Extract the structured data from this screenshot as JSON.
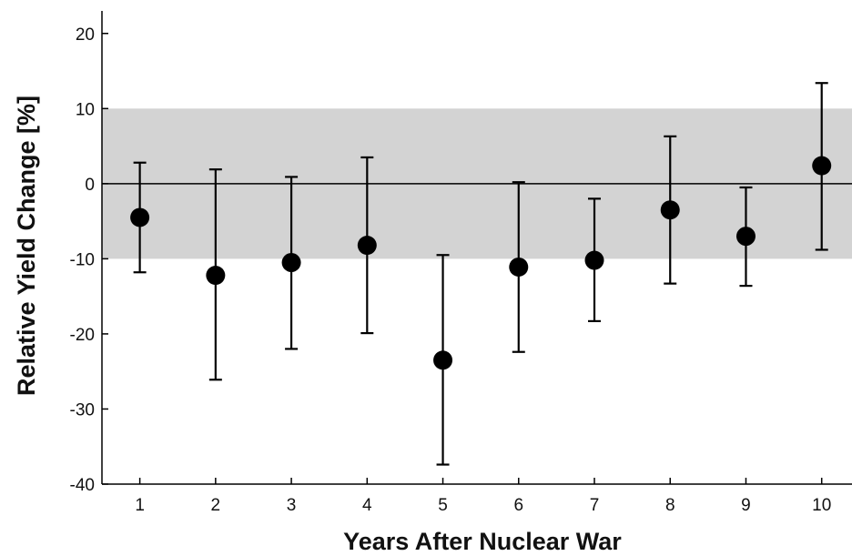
{
  "chart_data": {
    "type": "scatter",
    "title": "",
    "xlabel": "Years After Nuclear War",
    "ylabel": "Relative Yield Change [%]",
    "x": [
      1,
      2,
      3,
      4,
      5,
      6,
      7,
      8,
      9,
      10
    ],
    "xlim": [
      0.5,
      10.4
    ],
    "ylim": [
      -40,
      23
    ],
    "xticks": [
      1,
      2,
      3,
      4,
      5,
      6,
      7,
      8,
      9,
      10
    ],
    "yticks": [
      -40,
      -30,
      -20,
      -10,
      0,
      10,
      20
    ],
    "series": [
      {
        "values": [
          -4.5,
          -12.2,
          -10.5,
          -8.2,
          -23.5,
          -11.1,
          -10.2,
          -3.5,
          -7.0,
          2.4
        ],
        "error_low": [
          -11.8,
          -26.1,
          -22.0,
          -19.9,
          -37.4,
          -22.4,
          -18.3,
          -13.3,
          -13.6,
          -8.8
        ],
        "error_high": [
          2.8,
          1.9,
          0.9,
          3.5,
          -9.5,
          0.2,
          -2.0,
          6.3,
          -0.5,
          13.4
        ]
      }
    ],
    "band": [
      -10,
      10
    ],
    "zero_line": 0,
    "grid": false,
    "colors": {
      "marker": "#000000",
      "band": "#d3d3d3",
      "axis": "#000000"
    }
  }
}
